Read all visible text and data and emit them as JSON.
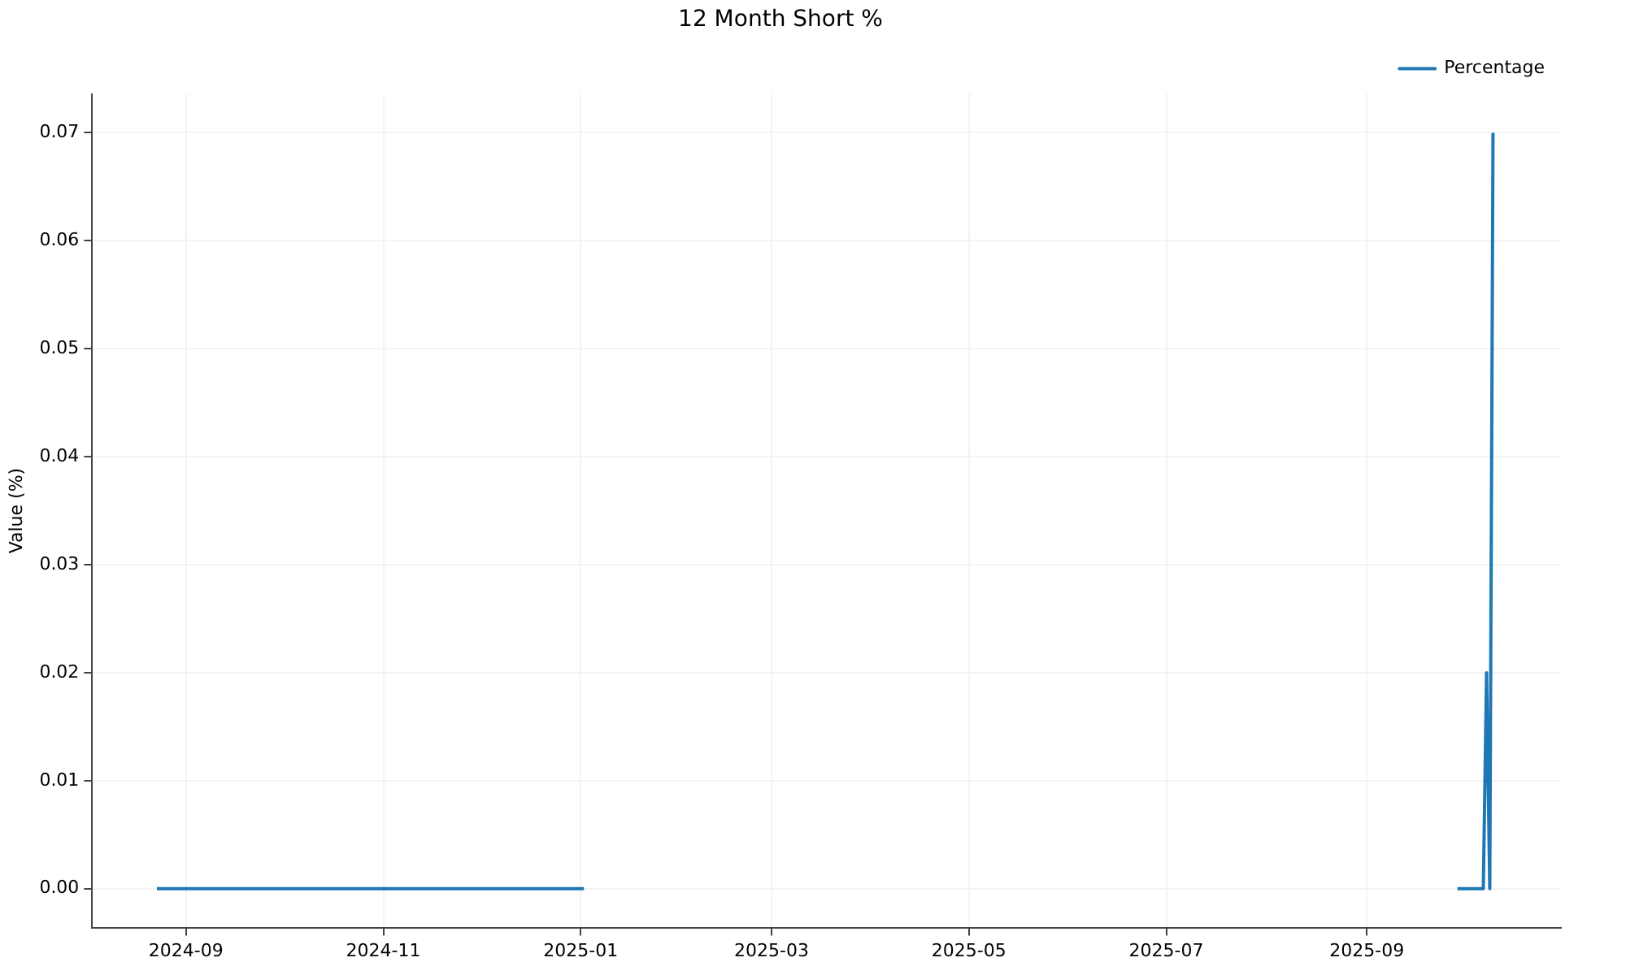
{
  "chart_data": {
    "type": "line",
    "title": "12 Month Short %",
    "ylabel": "Value (%)",
    "x": [
      "2024-08-23",
      "2025-01-02",
      "2025-03-01",
      "2025-09-29",
      "2025-10-07",
      "2025-10-08",
      "2025-10-09",
      "2025-10-10"
    ],
    "series": [
      {
        "name": "Percentage",
        "color": "#1f77b4",
        "values": [
          0,
          0,
          null,
          0,
          0,
          0.02,
          0,
          0.07
        ]
      }
    ],
    "xlim": [
      "2024-08-03",
      "2025-10-31"
    ],
    "xticks": [
      {
        "value": "2024-09-01",
        "label": "2024-09"
      },
      {
        "value": "2024-11-01",
        "label": "2024-11"
      },
      {
        "value": "2025-01-01",
        "label": "2025-01"
      },
      {
        "value": "2025-03-01",
        "label": "2025-03"
      },
      {
        "value": "2025-05-01",
        "label": "2025-05"
      },
      {
        "value": "2025-07-01",
        "label": "2025-07"
      },
      {
        "value": "2025-09-01",
        "label": "2025-09"
      }
    ],
    "ylim": [
      -0.0036,
      0.0736
    ],
    "yticks": [
      {
        "value": 0,
        "label": "0.00"
      },
      {
        "value": 0.01,
        "label": "0.01"
      },
      {
        "value": 0.02,
        "label": "0.02"
      },
      {
        "value": 0.03,
        "label": "0.03"
      },
      {
        "value": 0.04,
        "label": "0.04"
      },
      {
        "value": 0.05,
        "label": "0.05"
      },
      {
        "value": 0.06,
        "label": "0.06"
      },
      {
        "value": 0.07,
        "label": "0.07"
      }
    ],
    "grid": true,
    "legend": "top right",
    "marker": "none",
    "line_style": "solid"
  }
}
